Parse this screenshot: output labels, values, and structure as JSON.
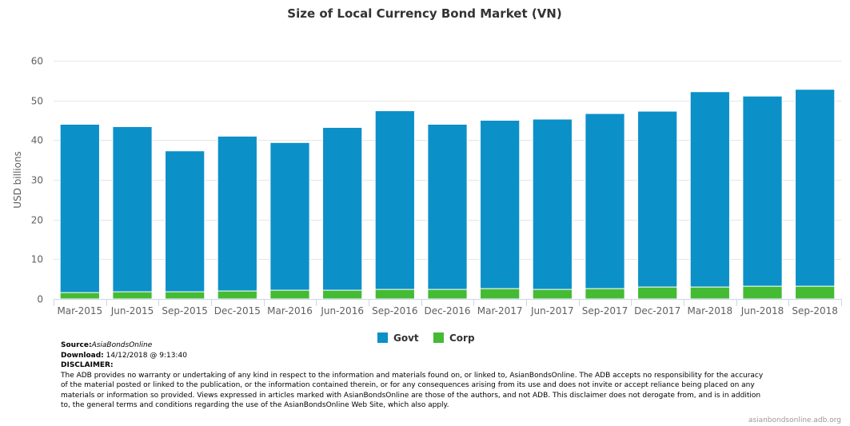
{
  "chart_data": {
    "type": "bar",
    "stacked": true,
    "title": "Size of Local Currency Bond Market (VN)",
    "xlabel": "",
    "ylabel": "USD billions",
    "ylim": [
      0,
      60
    ],
    "yticks": [
      0,
      10,
      20,
      30,
      40,
      50,
      60
    ],
    "grid": true,
    "legend": "bottom-center",
    "categories": [
      "Mar-2015",
      "Jun-2015",
      "Sep-2015",
      "Dec-2015",
      "Mar-2016",
      "Jun-2016",
      "Sep-2016",
      "Dec-2016",
      "Mar-2017",
      "Jun-2017",
      "Sep-2017",
      "Dec-2017",
      "Mar-2018",
      "Jun-2018",
      "Sep-2018"
    ],
    "series": [
      {
        "name": "Corp",
        "color": "#44bb33",
        "values": [
          1.6,
          1.8,
          1.8,
          2.0,
          2.2,
          2.2,
          2.4,
          2.4,
          2.6,
          2.4,
          2.6,
          3.0,
          3.0,
          3.2,
          3.2
        ]
      },
      {
        "name": "Govt",
        "color": "#0c90c8",
        "values": [
          42.4,
          41.6,
          35.5,
          39.0,
          37.2,
          41.0,
          45.0,
          41.6,
          42.4,
          42.9,
          44.1,
          44.3,
          49.2,
          47.9,
          49.6
        ]
      }
    ],
    "legend_order": [
      "Govt",
      "Corp"
    ]
  },
  "credit": "asianbondsonline.adb.org",
  "notes": {
    "source_label": "Source:",
    "source_value": "AsiaBondsOnline",
    "download_label": "Download:",
    "download_value": " 14/12/2018 @ 9:13:40",
    "disclaimer_label": "DISCLAIMER:",
    "disclaimer_text": "The ADB provides no warranty or undertaking of any kind in respect to the information and materials found on, or linked to, AsianBondsOnline. The ADB accepts no responsibility for the accuracy of the material posted or linked to the publication, or the information contained therein, or for any consequences arising from its use and does not invite or accept reliance being placed on any materials or information so provided. Views expressed in articles marked with AsianBondsOnline are those of the authors, and not ADB. This disclaimer does not derogate from, and is in addition to, the general terms and conditions regarding the use of the AsianBondsOnline Web Site, which also apply."
  }
}
